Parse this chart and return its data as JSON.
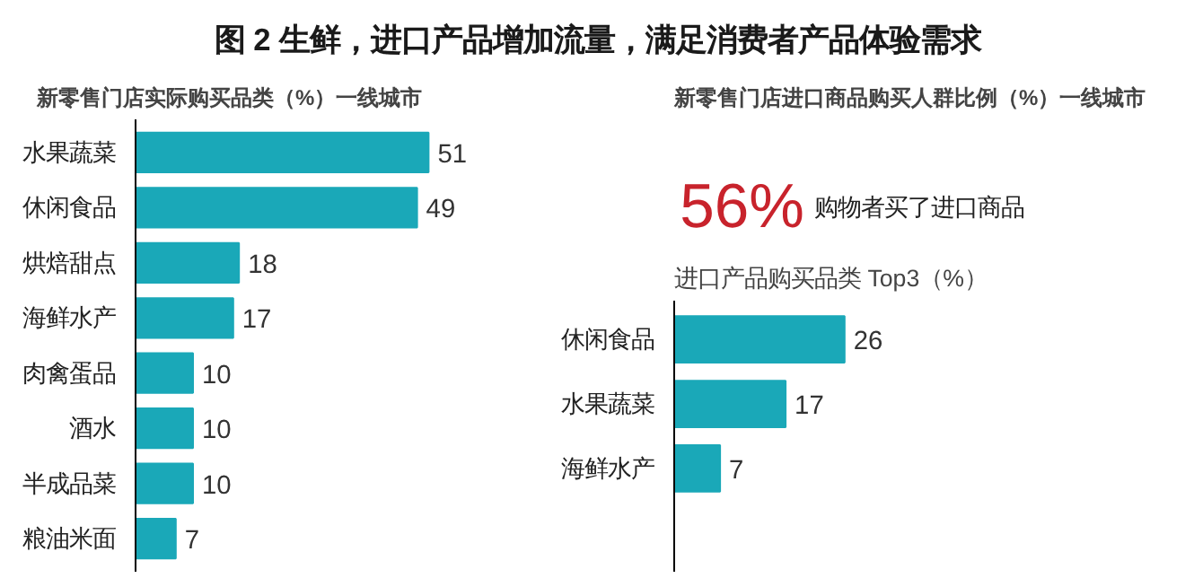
{
  "chart_data": [
    {
      "type": "bar",
      "orientation": "horizontal",
      "title": "图 2 生鲜，进口产品增加流量，满足消费者产品体验需求",
      "subtitle": "新零售门店实际购买品类（%）一线城市",
      "categories": [
        "水果蔬菜",
        "休闲食品",
        "烘焙甜点",
        "海鲜水产",
        "肉禽蛋品",
        "酒水",
        "半成品菜",
        "粮油米面"
      ],
      "values": [
        51,
        49,
        18,
        17,
        10,
        10,
        10,
        7
      ],
      "color": "#1aa8b8",
      "data_labels": true
    },
    {
      "type": "other",
      "title": "新零售门店进口商品购买人群比例（%）一线城市",
      "annotations": [
        "56%",
        "购物者买了进口商品"
      ],
      "color": "#c8232c"
    },
    {
      "type": "bar",
      "orientation": "horizontal",
      "title": "进口产品购买品类 Top3（%）",
      "categories": [
        "休闲食品",
        "水果蔬菜",
        "海鲜水产"
      ],
      "values": [
        26,
        17,
        7
      ],
      "color": "#1aa8b8",
      "data_labels": true
    }
  ]
}
